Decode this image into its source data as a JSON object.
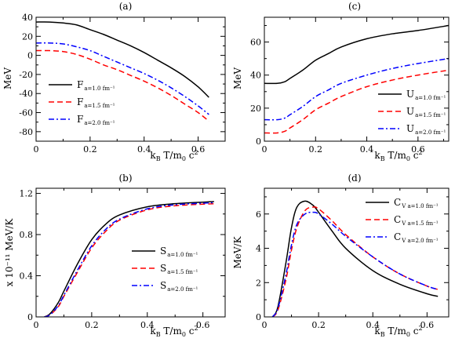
{
  "chart_data": [
    {
      "panel": "(a)",
      "type": "line",
      "ylabel": "MeV",
      "xlabel": "k_B T/m_0 c^2",
      "xlim": [
        0,
        0.7
      ],
      "ylim": [
        -90,
        40
      ],
      "xticks": [
        0,
        0.2,
        0.4,
        0.6
      ],
      "yticks": [
        40,
        20,
        0,
        -20,
        -40,
        -60,
        -80
      ],
      "legend": "center-left",
      "series": [
        {
          "name": "F",
          "sub": "a=1.0 fm⁻¹",
          "color": "#000000",
          "dash": "",
          "x": [
            0,
            0.05,
            0.1,
            0.15,
            0.2,
            0.25,
            0.3,
            0.35,
            0.4,
            0.45,
            0.5,
            0.55,
            0.6,
            0.64
          ],
          "y": [
            35,
            35,
            34,
            32,
            27,
            22,
            16,
            10,
            3,
            -5,
            -13,
            -22,
            -33,
            -44
          ]
        },
        {
          "name": "F",
          "sub": "a=1.5 fm⁻¹",
          "color": "#ff0000",
          "dash": "7,4",
          "x": [
            0,
            0.05,
            0.1,
            0.15,
            0.2,
            0.25,
            0.3,
            0.35,
            0.4,
            0.45,
            0.5,
            0.55,
            0.6,
            0.64
          ],
          "y": [
            5,
            5,
            4,
            1,
            -4,
            -10,
            -15,
            -21,
            -27,
            -34,
            -42,
            -51,
            -60,
            -69
          ]
        },
        {
          "name": "F",
          "sub": "a=2.0 fm⁻¹",
          "color": "#0000ff",
          "dash": "7,3,2,3",
          "x": [
            0,
            0.05,
            0.1,
            0.15,
            0.2,
            0.25,
            0.3,
            0.35,
            0.4,
            0.45,
            0.5,
            0.55,
            0.6,
            0.64
          ],
          "y": [
            13,
            13,
            12,
            9,
            5,
            -1,
            -7,
            -13,
            -19,
            -26,
            -34,
            -43,
            -53,
            -62
          ]
        }
      ]
    },
    {
      "panel": "(c)",
      "type": "line",
      "ylabel": "MeV",
      "xlabel": "k_B T/m_0 c^2",
      "xlim": [
        0,
        0.72
      ],
      "ylim": [
        0,
        75
      ],
      "xticks": [
        0,
        0.2,
        0.4,
        0.6
      ],
      "yticks": [
        0,
        20,
        40,
        60
      ],
      "legend": "bottom-right",
      "series": [
        {
          "name": "U",
          "sub": "a=1.0 fm⁻¹",
          "color": "#000000",
          "dash": "",
          "x": [
            0,
            0.05,
            0.08,
            0.1,
            0.15,
            0.2,
            0.25,
            0.3,
            0.4,
            0.5,
            0.6,
            0.72
          ],
          "y": [
            35,
            35,
            36,
            38,
            43,
            49,
            53,
            57,
            62,
            65,
            67,
            70
          ]
        },
        {
          "name": "U",
          "sub": "a=1.5 fm⁻¹",
          "color": "#ff0000",
          "dash": "7,4",
          "x": [
            0,
            0.05,
            0.08,
            0.1,
            0.15,
            0.2,
            0.25,
            0.3,
            0.4,
            0.5,
            0.6,
            0.72
          ],
          "y": [
            5,
            5,
            6,
            8,
            13,
            19,
            23,
            27,
            33,
            37,
            40,
            43
          ]
        },
        {
          "name": "U",
          "sub": "a=2.0 fm⁻¹",
          "color": "#0000ff",
          "dash": "7,3,2,3",
          "x": [
            0,
            0.05,
            0.08,
            0.1,
            0.15,
            0.2,
            0.25,
            0.3,
            0.4,
            0.5,
            0.6,
            0.72
          ],
          "y": [
            13,
            13,
            14,
            16,
            21,
            27,
            31,
            35,
            40,
            44,
            47,
            50
          ]
        }
      ]
    },
    {
      "panel": "(b)",
      "type": "line",
      "ylabel": "x 10⁻¹¹ MeV/K",
      "xlabel": "k_B T/m_0 c^2",
      "xlim": [
        0,
        0.68
      ],
      "ylim": [
        0,
        1.25
      ],
      "xticks": [
        0,
        0.2,
        0.4,
        0.6
      ],
      "yticks": [
        0,
        0.4,
        0.8,
        1.2
      ],
      "legend": "bottom-right",
      "series": [
        {
          "name": "S",
          "sub": "a=1.0 fm⁻¹",
          "color": "#000000",
          "dash": "",
          "x": [
            0.03,
            0.05,
            0.08,
            0.1,
            0.15,
            0.2,
            0.25,
            0.3,
            0.4,
            0.5,
            0.64
          ],
          "y": [
            0,
            0.03,
            0.14,
            0.25,
            0.52,
            0.75,
            0.9,
            0.99,
            1.07,
            1.1,
            1.12
          ]
        },
        {
          "name": "S",
          "sub": "a=1.5 fm⁻¹",
          "color": "#ff0000",
          "dash": "7,4",
          "x": [
            0.03,
            0.05,
            0.08,
            0.1,
            0.15,
            0.2,
            0.25,
            0.3,
            0.4,
            0.5,
            0.64
          ],
          "y": [
            0,
            0.02,
            0.1,
            0.2,
            0.44,
            0.67,
            0.83,
            0.94,
            1.04,
            1.08,
            1.1
          ]
        },
        {
          "name": "S",
          "sub": "a=2.0 fm⁻¹",
          "color": "#0000ff",
          "dash": "7,3,2,3",
          "x": [
            0.03,
            0.05,
            0.08,
            0.1,
            0.15,
            0.2,
            0.25,
            0.3,
            0.4,
            0.5,
            0.64
          ],
          "y": [
            0,
            0.02,
            0.11,
            0.21,
            0.46,
            0.69,
            0.85,
            0.95,
            1.05,
            1.09,
            1.11
          ]
        }
      ]
    },
    {
      "panel": "(d)",
      "type": "line",
      "ylabel": "MeV/K",
      "xlabel": "k_B T/m_0 c^2",
      "xlim": [
        0,
        0.68
      ],
      "ylim": [
        0,
        7.5
      ],
      "xticks": [
        0,
        0.2,
        0.4,
        0.6
      ],
      "yticks": [
        0,
        2,
        4,
        6
      ],
      "legend": "top-right",
      "series": [
        {
          "name": "C",
          "sub": "V a=1.0 fm⁻¹",
          "color": "#000000",
          "dash": "",
          "x": [
            0.03,
            0.05,
            0.08,
            0.1,
            0.12,
            0.15,
            0.18,
            0.2,
            0.25,
            0.3,
            0.4,
            0.5,
            0.6,
            0.64
          ],
          "y": [
            0,
            0.6,
            3.2,
            5.2,
            6.4,
            6.75,
            6.5,
            6.1,
            5.0,
            4.0,
            2.7,
            1.9,
            1.35,
            1.2
          ]
        },
        {
          "name": "C",
          "sub": "V a=1.5 fm⁻¹",
          "color": "#ff0000",
          "dash": "7,4",
          "x": [
            0.03,
            0.05,
            0.08,
            0.1,
            0.12,
            0.15,
            0.18,
            0.2,
            0.25,
            0.3,
            0.4,
            0.5,
            0.6,
            0.64
          ],
          "y": [
            0,
            0.4,
            2.2,
            3.9,
            5.2,
            6.2,
            6.4,
            6.3,
            5.6,
            4.8,
            3.5,
            2.5,
            1.8,
            1.6
          ]
        },
        {
          "name": "C",
          "sub": "V a=2.0 fm⁻¹",
          "color": "#0000ff",
          "dash": "7,3,2,3",
          "x": [
            0.03,
            0.05,
            0.08,
            0.1,
            0.12,
            0.15,
            0.18,
            0.2,
            0.25,
            0.3,
            0.4,
            0.5,
            0.6,
            0.64
          ],
          "y": [
            0,
            0.5,
            2.5,
            4.2,
            5.4,
            6.0,
            6.1,
            6.0,
            5.4,
            4.7,
            3.5,
            2.5,
            1.8,
            1.6
          ]
        }
      ]
    }
  ]
}
